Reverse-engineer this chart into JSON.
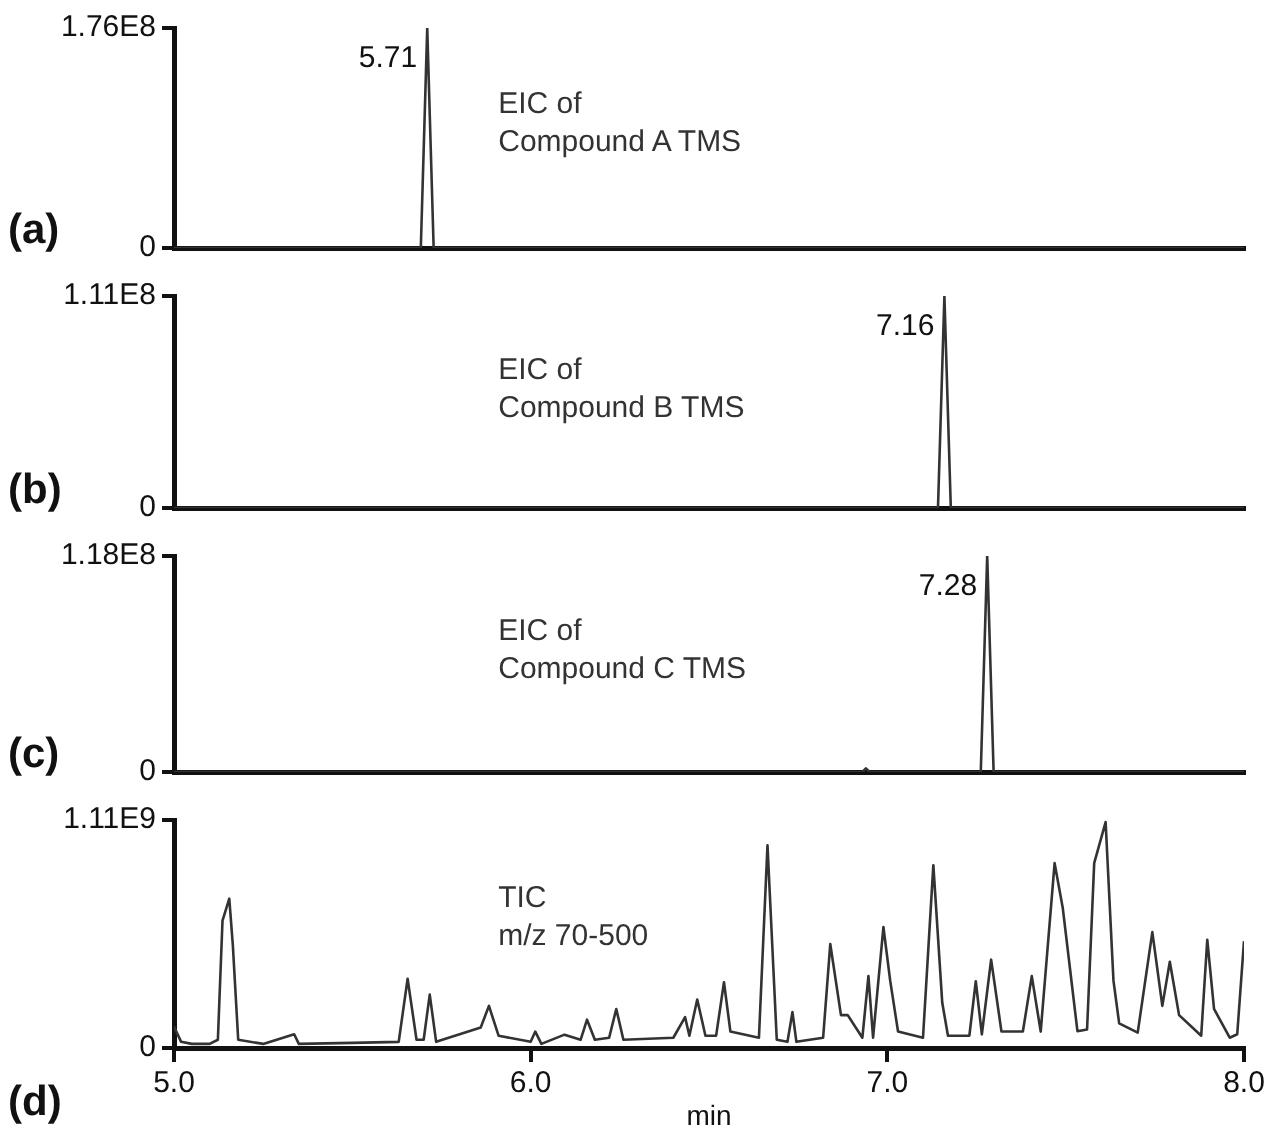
{
  "chart_data": [
    {
      "type": "line",
      "title": "(a)",
      "x": [
        5.0,
        5.692,
        5.71,
        5.728,
        8.0
      ],
      "values": [
        0,
        0,
        176000000.0,
        0,
        0
      ],
      "color": "#333333",
      "xlim": [
        5,
        8
      ],
      "ylim": [
        0,
        176000000.0
      ],
      "yticks": [
        {
          "value": 0,
          "label": "0"
        },
        {
          "value": 176000000.0,
          "label": "1.76E8"
        }
      ],
      "tick_labels": "y",
      "grid": false,
      "legend": false,
      "marker": "none",
      "annotations": [
        {
          "text": "5.71",
          "x": 5.71,
          "y": 176000000.0
        },
        "EIC of\nCompound A TMS"
      ]
    },
    {
      "type": "line",
      "title": "(b)",
      "x": [
        5.0,
        7.142,
        7.16,
        7.178,
        8.0
      ],
      "values": [
        0,
        0,
        111000000.0,
        0,
        0
      ],
      "color": "#333333",
      "xlim": [
        5,
        8
      ],
      "ylim": [
        0,
        111000000.0
      ],
      "yticks": [
        {
          "value": 0,
          "label": "0"
        },
        {
          "value": 111000000.0,
          "label": "1.11E8"
        }
      ],
      "tick_labels": "y",
      "grid": false,
      "legend": false,
      "marker": "none",
      "annotations": [
        {
          "text": "7.16",
          "x": 7.16,
          "y": 111000000.0
        },
        "EIC of\nCompound B TMS"
      ]
    },
    {
      "type": "line",
      "title": "(c)",
      "x": [
        5.0,
        6.93,
        6.94,
        6.95,
        7.262,
        7.28,
        7.298,
        8.0
      ],
      "values": [
        0,
        0,
        2000000.0,
        0,
        0,
        118000000.0,
        0,
        0
      ],
      "color": "#333333",
      "xlim": [
        5,
        8
      ],
      "ylim": [
        0,
        118000000.0
      ],
      "yticks": [
        {
          "value": 0,
          "label": "0"
        },
        {
          "value": 118000000.0,
          "label": "1.18E8"
        }
      ],
      "tick_labels": "y",
      "grid": false,
      "legend": false,
      "marker": "none",
      "annotations": [
        {
          "text": "7.28",
          "x": 7.28,
          "y": 118000000.0
        },
        "EIC of\nCompound C TMS"
      ]
    },
    {
      "type": "line",
      "title": "(d)",
      "xlabel": "min",
      "x": [
        5.0,
        5.02,
        5.05,
        5.1,
        5.123,
        5.136,
        5.155,
        5.165,
        5.18,
        5.25,
        5.337,
        5.35,
        5.5,
        5.63,
        5.655,
        5.68,
        5.7,
        5.717,
        5.735,
        5.86,
        5.883,
        5.91,
        6.0,
        6.013,
        6.03,
        6.095,
        6.14,
        6.158,
        6.18,
        6.22,
        6.24,
        6.26,
        6.4,
        6.433,
        6.445,
        6.467,
        6.49,
        6.52,
        6.542,
        6.56,
        6.64,
        6.664,
        6.69,
        6.72,
        6.734,
        6.745,
        6.82,
        6.84,
        6.87,
        6.889,
        6.93,
        6.947,
        6.96,
        6.989,
        7.008,
        7.03,
        7.1,
        7.129,
        7.154,
        7.17,
        7.23,
        7.248,
        7.265,
        7.291,
        7.32,
        7.38,
        7.405,
        7.43,
        7.469,
        7.492,
        7.533,
        7.56,
        7.58,
        7.612,
        7.634,
        7.65,
        7.702,
        7.743,
        7.771,
        7.792,
        7.818,
        7.88,
        7.897,
        7.916,
        7.96,
        7.981,
        8.0
      ],
      "values": [
        104000000.0,
        30000000.0,
        20000000.0,
        20000000.0,
        40000000.0,
        620000000.0,
        727000000.0,
        500000000.0,
        40000000.0,
        20000000.0,
        67000000.0,
        20000000.0,
        25000000.0,
        30000000.0,
        337000000.0,
        40000000.0,
        40000000.0,
        260000000.0,
        30000000.0,
        100000000.0,
        205000000.0,
        60000000.0,
        30000000.0,
        80000000.0,
        20000000.0,
        65000000.0,
        40000000.0,
        138000000.0,
        40000000.0,
        50000000.0,
        190000000.0,
        40000000.0,
        50000000.0,
        150000000.0,
        60000000.0,
        236000000.0,
        60000000.0,
        60000000.0,
        320000000.0,
        80000000.0,
        50000000.0,
        987000000.0,
        40000000.0,
        30000000.0,
        175000000.0,
        30000000.0,
        50000000.0,
        506000000.0,
        160000000.0,
        160000000.0,
        50000000.0,
        350000000.0,
        50000000.0,
        589000000.0,
        328000000.0,
        80000000.0,
        50000000.0,
        890000000.0,
        220000000.0,
        60000000.0,
        60000000.0,
        325000000.0,
        66000000.0,
        430000000.0,
        80000000.0,
        80000000.0,
        350000000.0,
        80000000.0,
        900000000.0,
        680000000.0,
        82000000.0,
        90000000.0,
        900000000.0,
        1100000000.0,
        328000000.0,
        120000000.0,
        75000000.0,
        564000000.0,
        205000000.0,
        420000000.0,
        160000000.0,
        60000000.0,
        527000000.0,
        190000000.0,
        50000000.0,
        67000000.0,
        520000000.0
      ],
      "color": "#333333",
      "xlim": [
        5,
        8
      ],
      "xticks": [
        {
          "value": 5,
          "label": "5.0"
        },
        {
          "value": 6,
          "label": "6.0"
        },
        {
          "value": 7,
          "label": "7.0"
        },
        {
          "value": 8,
          "label": "8.0"
        }
      ],
      "ylim": [
        0,
        1110000000.0
      ],
      "yticks": [
        {
          "value": 0,
          "label": "0"
        },
        {
          "value": 1110000000.0,
          "label": "1.11E9"
        }
      ],
      "grid": false,
      "legend": false,
      "marker": "none",
      "annotations": [
        "TIC\nm/z 70-500"
      ]
    }
  ]
}
